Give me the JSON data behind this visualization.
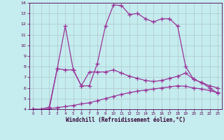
{
  "xlabel": "Windchill (Refroidissement éolien,°C)",
  "bg_color": "#c5ecee",
  "grid_color": "#b0c8cc",
  "line_color": "#993399",
  "xlim": [
    -0.5,
    23.5
  ],
  "ylim": [
    4,
    14
  ],
  "xticks": [
    0,
    1,
    2,
    3,
    4,
    5,
    6,
    7,
    8,
    9,
    10,
    11,
    12,
    13,
    14,
    15,
    16,
    17,
    18,
    19,
    20,
    21,
    22,
    23
  ],
  "yticks": [
    4,
    5,
    6,
    7,
    8,
    9,
    10,
    11,
    12,
    13,
    14
  ],
  "line1_x": [
    0,
    1,
    2,
    3,
    4,
    5,
    6,
    7,
    8,
    9,
    10,
    11,
    12,
    13,
    14,
    15,
    16,
    17,
    18,
    19,
    20,
    21,
    22,
    23
  ],
  "line1_y": [
    4.0,
    3.95,
    4.0,
    7.8,
    11.8,
    7.7,
    6.2,
    6.2,
    8.3,
    11.8,
    13.8,
    13.75,
    12.9,
    13.0,
    12.5,
    12.2,
    12.5,
    12.5,
    11.8,
    8.0,
    6.8,
    6.5,
    6.0,
    5.5
  ],
  "line2_x": [
    0,
    1,
    2,
    3,
    4,
    5,
    6,
    7,
    8,
    9,
    10,
    11,
    12,
    13,
    14,
    15,
    16,
    17,
    18,
    19,
    20,
    21,
    22,
    23
  ],
  "line2_y": [
    4.0,
    4.0,
    4.2,
    7.8,
    7.7,
    7.7,
    6.2,
    7.5,
    7.5,
    7.5,
    7.7,
    7.4,
    7.1,
    6.9,
    6.7,
    6.6,
    6.7,
    6.9,
    7.1,
    7.4,
    6.8,
    6.5,
    6.2,
    6.0
  ],
  "line3_x": [
    0,
    1,
    2,
    3,
    4,
    5,
    6,
    7,
    8,
    9,
    10,
    11,
    12,
    13,
    14,
    15,
    16,
    17,
    18,
    19,
    20,
    21,
    22,
    23
  ],
  "line3_y": [
    4.0,
    3.95,
    4.05,
    4.15,
    4.25,
    4.35,
    4.5,
    4.6,
    4.8,
    5.0,
    5.2,
    5.4,
    5.55,
    5.7,
    5.8,
    5.9,
    6.0,
    6.1,
    6.2,
    6.15,
    6.0,
    5.9,
    5.75,
    5.55
  ]
}
